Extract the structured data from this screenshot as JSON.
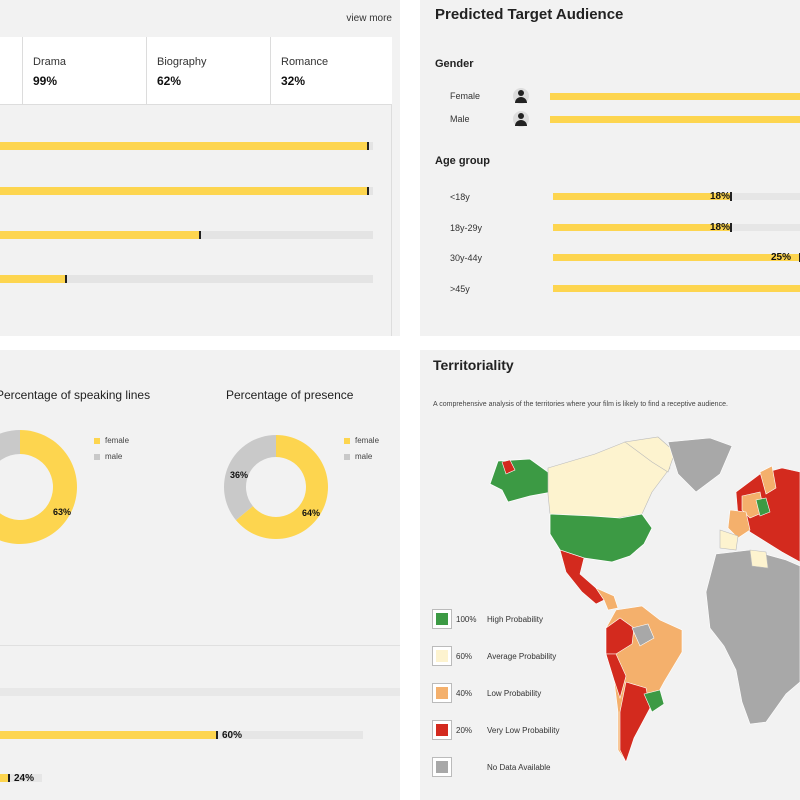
{
  "genres": {
    "view_more": "view more",
    "items": [
      {
        "name": "Drama",
        "value": "99%"
      },
      {
        "name": "Biography",
        "value": "62%"
      },
      {
        "name": "Romance",
        "value": "32%"
      }
    ],
    "bar_levels": [
      0.99,
      0.99,
      0.54,
      0.18
    ]
  },
  "audience": {
    "title": "Predicted Target Audience",
    "gender_heading": "Gender",
    "gender": [
      {
        "label": "Female",
        "level": 1.0
      },
      {
        "label": "Male",
        "level": 1.0
      }
    ],
    "age_heading": "Age group",
    "ages": [
      {
        "label": "<18y",
        "value": "18%",
        "level": 0.18
      },
      {
        "label": "18y-29y",
        "value": "18%",
        "level": 0.18
      },
      {
        "label": "30y-44y",
        "value": "25%",
        "level": 0.25
      },
      {
        "label": ">45y",
        "value": "",
        "level": 1.0
      }
    ],
    "bar_color": "#fdd54f"
  },
  "presence": {
    "speaking_title": "Percentage of speaking lines",
    "presence_title": "Percentage of presence",
    "speaking": {
      "female_label": "63%",
      "female": 63,
      "male": 37
    },
    "presence": {
      "female_label": "64%",
      "male_label": "36%",
      "female": 64,
      "male": 36
    },
    "legend": {
      "female": "female",
      "male": "male"
    },
    "bars": [
      {
        "value": "60%",
        "level": 0.6
      },
      {
        "value": "24%",
        "level": 0.24
      }
    ],
    "colors": {
      "female": "#fdd54f",
      "male": "#c9c9c9"
    }
  },
  "territoriality": {
    "title": "Territoriality",
    "description": "A comprehensive analysis of the territories where your film is likely to find a receptive audience.",
    "legend": [
      {
        "pct": "100%",
        "label": "High Probability",
        "color": "#3c9a44"
      },
      {
        "pct": "60%",
        "label": "Average Probability",
        "color": "#fdf3cf"
      },
      {
        "pct": "40%",
        "label": "Low Probability",
        "color": "#f4b06c"
      },
      {
        "pct": "20%",
        "label": "Very Low Probability",
        "color": "#d32a1e"
      },
      {
        "pct": "",
        "label": "No Data Available",
        "color": "#a8a8a8"
      }
    ]
  }
}
